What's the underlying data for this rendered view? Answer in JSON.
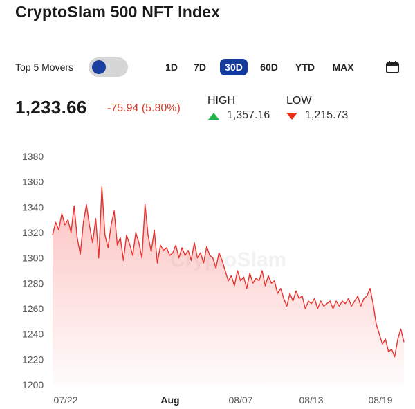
{
  "title": "CryptoSlam 500 NFT Index",
  "controls": {
    "top_movers_label": "Top 5 Movers",
    "top_movers_enabled": false,
    "ranges": [
      "1D",
      "7D",
      "30D",
      "60D",
      "YTD",
      "MAX"
    ],
    "active_range": "30D",
    "calendar_icon": "calendar-icon"
  },
  "summary": {
    "value": "1,233.66",
    "change": "-75.94 (5.80%)",
    "high_label": "HIGH",
    "high_value": "1,357.16",
    "low_label": "LOW",
    "low_value": "1,215.73"
  },
  "colors": {
    "accent": "#143a9c",
    "down": "#e53118",
    "up": "#19b34a",
    "line": "#e8322e"
  },
  "chart_data": {
    "type": "area",
    "watermark": "CryptoSlam",
    "ylim": [
      1200,
      1380
    ],
    "yticks": [
      1200,
      1220,
      1240,
      1260,
      1280,
      1300,
      1320,
      1340,
      1360,
      1380
    ],
    "xtick_labels": [
      "07/22",
      "Aug",
      "08/07",
      "08/13",
      "08/19"
    ],
    "grid": false,
    "series": [
      {
        "values": [
          1318,
          1328,
          1322,
          1335,
          1326,
          1330,
          1320,
          1341,
          1316,
          1303,
          1328,
          1342,
          1325,
          1312,
          1331,
          1300,
          1356,
          1318,
          1308,
          1326,
          1337,
          1310,
          1316,
          1298,
          1318,
          1311,
          1302,
          1320,
          1312,
          1300,
          1342,
          1318,
          1305,
          1322,
          1296,
          1310,
          1306,
          1308,
          1302,
          1304,
          1310,
          1300,
          1308,
          1302,
          1306,
          1298,
          1312,
          1300,
          1304,
          1296,
          1309,
          1302,
          1300,
          1292,
          1304,
          1298,
          1290,
          1282,
          1286,
          1278,
          1290,
          1282,
          1285,
          1276,
          1288,
          1280,
          1284,
          1282,
          1290,
          1278,
          1286,
          1280,
          1282,
          1272,
          1276,
          1268,
          1262,
          1272,
          1266,
          1274,
          1268,
          1270,
          1260,
          1266,
          1264,
          1268,
          1260,
          1266,
          1262,
          1264,
          1266,
          1260,
          1266,
          1262,
          1266,
          1264,
          1268,
          1262,
          1266,
          1270,
          1262,
          1268,
          1270,
          1276,
          1264,
          1248,
          1240,
          1232,
          1236,
          1226,
          1228,
          1222,
          1236,
          1244,
          1233.66
        ]
      }
    ]
  }
}
